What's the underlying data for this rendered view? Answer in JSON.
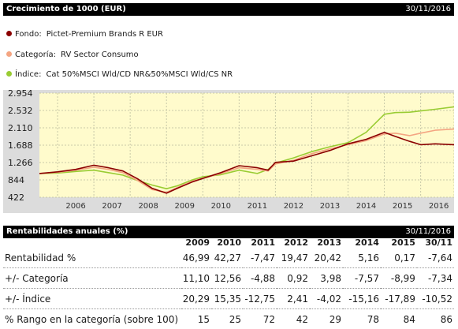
{
  "growth": {
    "title": "Crecimiento de 1000 (EUR)",
    "date": "30/11/2016"
  },
  "legend": [
    {
      "key": "Fondo:",
      "name": "Pictet-Premium Brands R EUR",
      "color": "#8b0000"
    },
    {
      "key": "Categoría:",
      "name": "RV Sector Consumo",
      "color": "#f4a582"
    },
    {
      "key": "Índice:",
      "name": "Cat 50%MSCI Wld/CD NR&50%MSCI Wld/CS NR",
      "color": "#99cc33"
    }
  ],
  "chart_data": {
    "type": "line",
    "title": "Crecimiento de 1000 (EUR)",
    "x_start": 2005.5,
    "x_end": 2016.92,
    "ylim": [
      422,
      2954
    ],
    "yticks": [
      422,
      844,
      1266,
      1688,
      2110,
      2532,
      2954
    ],
    "ytick_labels": [
      "422",
      "844",
      "1.266",
      "1.688",
      "2.110",
      "2.532",
      "2.954"
    ],
    "xtick_labels": [
      "2006",
      "2007",
      "2008",
      "2009",
      "2010",
      "2011",
      "2012",
      "2013",
      "2014",
      "2015",
      "2016"
    ],
    "x": [
      2005.5,
      2006.0,
      2006.5,
      2007.0,
      2007.4,
      2007.8,
      2008.2,
      2008.6,
      2009.0,
      2009.3,
      2009.7,
      2010.0,
      2010.5,
      2011.0,
      2011.5,
      2011.8,
      2012.0,
      2012.5,
      2013.0,
      2013.5,
      2014.0,
      2014.5,
      2015.0,
      2015.3,
      2015.7,
      2016.0,
      2016.4,
      2016.92
    ],
    "series": [
      {
        "name": "Pictet-Premium Brands R EUR",
        "color": "#8b0000",
        "values": [
          1000,
          1040,
          1100,
          1200,
          1140,
          1060,
          870,
          640,
          520,
          640,
          790,
          880,
          1020,
          1190,
          1140,
          1080,
          1270,
          1300,
          1430,
          1560,
          1720,
          1830,
          2000,
          1900,
          1780,
          1700,
          1720,
          1700
        ]
      },
      {
        "name": "RV Sector Consumo",
        "color": "#f4a582",
        "values": [
          1000,
          1030,
          1080,
          1150,
          1100,
          1020,
          830,
          610,
          540,
          660,
          810,
          880,
          1000,
          1140,
          1100,
          1060,
          1230,
          1320,
          1480,
          1600,
          1700,
          1800,
          1960,
          1980,
          1920,
          1980,
          2050,
          2080
        ]
      },
      {
        "name": "Cat 50%MSCI Wld/CD NR&50%MSCI Wld/CS NR",
        "color": "#99cc33",
        "values": [
          1000,
          1010,
          1050,
          1080,
          1020,
          960,
          830,
          720,
          630,
          700,
          840,
          920,
          970,
          1080,
          1000,
          1100,
          1250,
          1380,
          1530,
          1650,
          1750,
          2000,
          2440,
          2480,
          2490,
          2520,
          2560,
          2620
        ]
      }
    ]
  },
  "returns": {
    "title": "Rentabilidades anuales (%)",
    "date": "30/11/2016",
    "columns": [
      "2009",
      "2010",
      "2011",
      "2012",
      "2013",
      "2014",
      "2015",
      "30/11"
    ],
    "rows": [
      {
        "label": "Rentabilidad %",
        "values": [
          "46,99",
          "42,27",
          "-7,47",
          "19,47",
          "20,42",
          "5,16",
          "0,17",
          "-7,64"
        ]
      },
      {
        "label": "+/- Categoría",
        "values": [
          "11,10",
          "12,56",
          "-4,88",
          "0,92",
          "3,98",
          "-7,57",
          "-8,99",
          "-7,34"
        ]
      },
      {
        "label": "+/- Índice",
        "values": [
          "20,29",
          "15,35",
          "-12,75",
          "2,41",
          "-4,02",
          "-15,16",
          "-17,89",
          "-10,52"
        ]
      },
      {
        "label": "% Rango en la categoría (sobre 100)",
        "values": [
          "15",
          "25",
          "72",
          "42",
          "29",
          "78",
          "84",
          "86"
        ]
      }
    ]
  }
}
